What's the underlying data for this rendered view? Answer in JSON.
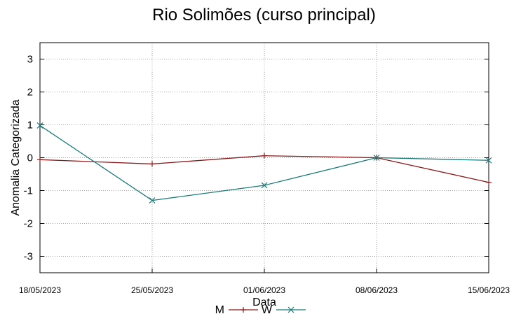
{
  "chart_data": {
    "type": "line",
    "title": "Rio Solimões (curso principal)",
    "xlabel": "Data",
    "ylabel": "Anomalia Categorizada",
    "x_tick_labels": [
      "18/05/2023",
      "25/05/2023",
      "01/06/2023",
      "08/06/2023",
      "15/06/2023"
    ],
    "x_range": [
      "18/05/2023",
      "15/06/2023"
    ],
    "ylim": [
      -3.5,
      3.5
    ],
    "y_ticks": [
      3,
      2,
      1,
      0,
      -1,
      -2,
      -3
    ],
    "y_tick_labels": [
      "3",
      "2",
      "1",
      "0",
      "-1",
      "-2",
      "-3"
    ],
    "grid": true,
    "legend_position": "bottom-center",
    "series": [
      {
        "name": "M",
        "color": "#8b1a1a",
        "marker": "plus",
        "points": [
          {
            "x": "18/05/2023",
            "y": -0.06
          },
          {
            "x": "25/05/2023",
            "y": -0.19
          },
          {
            "x": "01/06/2023",
            "y": 0.06
          },
          {
            "x": "08/06/2023",
            "y": 0.0
          },
          {
            "x": "15/06/2023",
            "y": -0.75
          }
        ]
      },
      {
        "name": "W",
        "color": "#1a7a7a",
        "marker": "cross",
        "points": [
          {
            "x": "18/05/2023",
            "y": 0.98
          },
          {
            "x": "25/05/2023",
            "y": -1.3
          },
          {
            "x": "01/06/2023",
            "y": -0.84
          },
          {
            "x": "08/06/2023",
            "y": 0.0
          },
          {
            "x": "15/06/2023",
            "y": -0.08
          }
        ]
      }
    ]
  }
}
